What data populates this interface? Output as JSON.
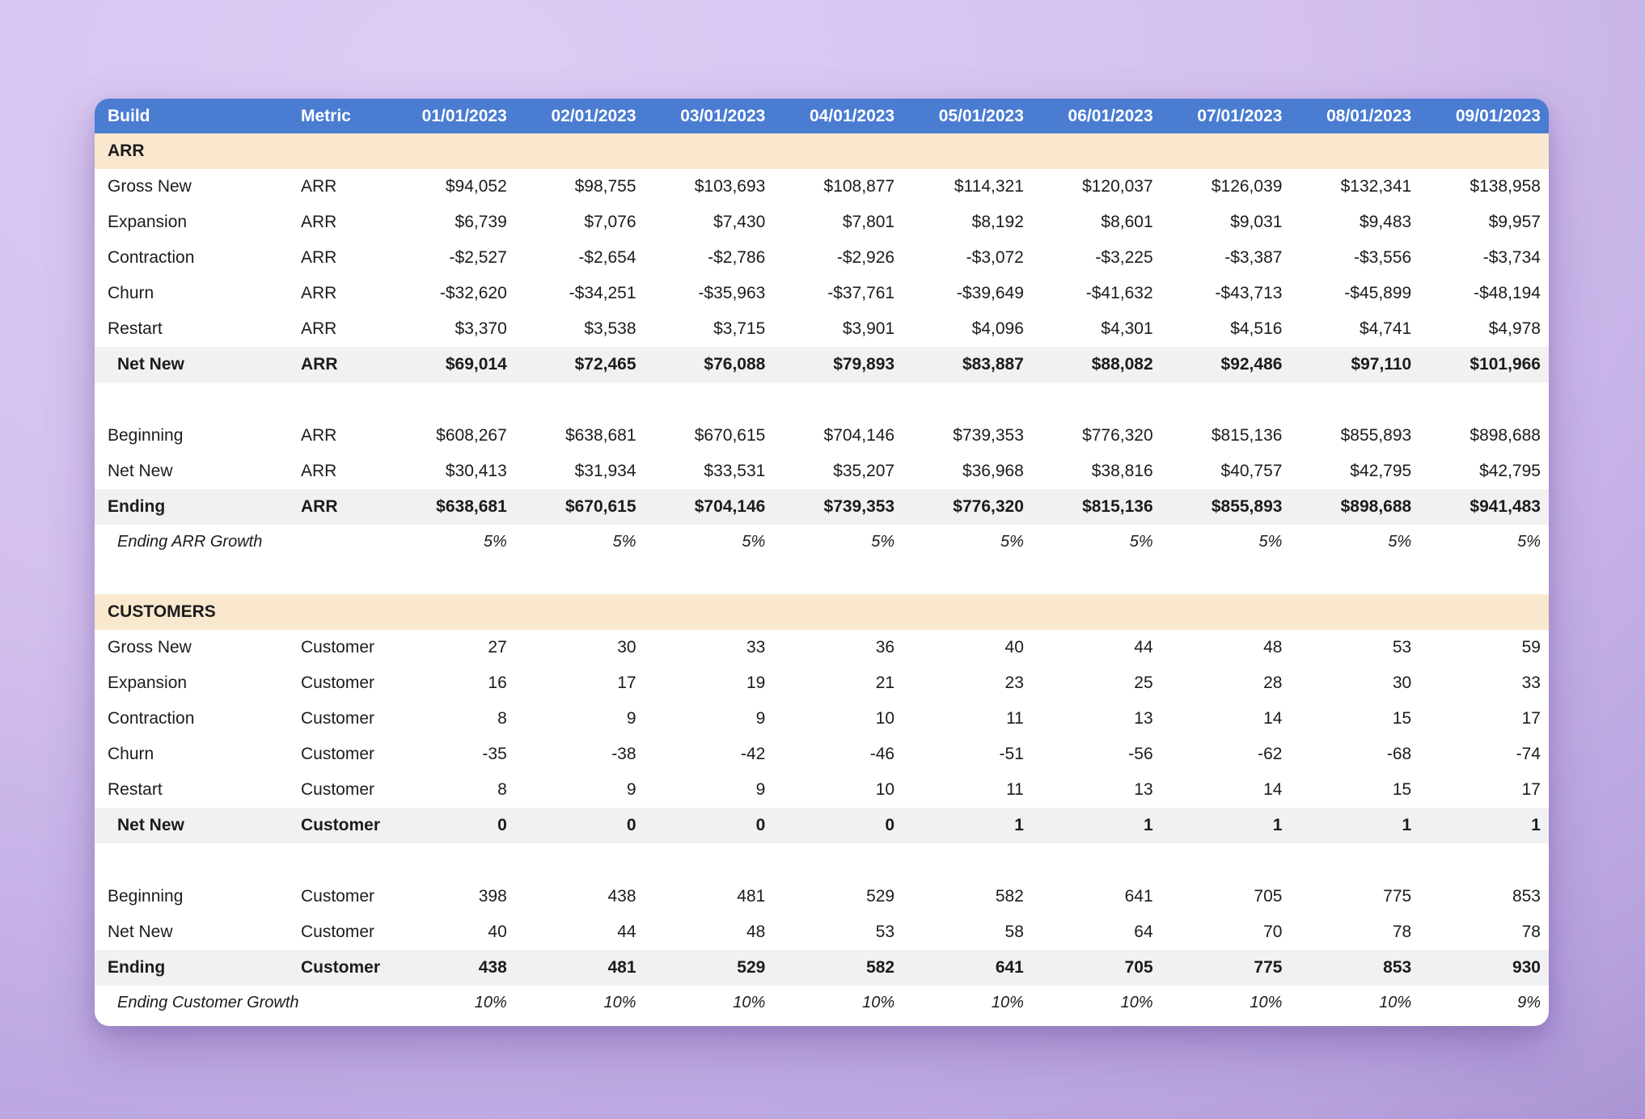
{
  "theme": {
    "accent": "#4a7cd2",
    "band": "#f9e8cd",
    "subtle": "#f1f1f3",
    "card": "#ffffff",
    "text": "#1c1c1e",
    "bg-light": "#dccdf4",
    "bg-mid": "#d3c0ee",
    "bg-dark": "#b7a2de"
  },
  "table": {
    "columns": [
      "Build",
      "Metric",
      "01/01/2023",
      "02/01/2023",
      "03/01/2023",
      "04/01/2023",
      "05/01/2023",
      "06/01/2023",
      "07/01/2023",
      "08/01/2023",
      "09/01/2023"
    ],
    "sections": [
      {
        "title": "ARR",
        "rows": [
          {
            "type": "data",
            "label": "Gross New",
            "metric": "ARR",
            "values": [
              "$94,052",
              "$98,755",
              "$103,693",
              "$108,877",
              "$114,321",
              "$120,037",
              "$126,039",
              "$132,341",
              "$138,958"
            ]
          },
          {
            "type": "data",
            "label": "Expansion",
            "metric": "ARR",
            "values": [
              "$6,739",
              "$7,076",
              "$7,430",
              "$7,801",
              "$8,192",
              "$8,601",
              "$9,031",
              "$9,483",
              "$9,957"
            ]
          },
          {
            "type": "data",
            "label": "Contraction",
            "metric": "ARR",
            "values": [
              "-$2,527",
              "-$2,654",
              "-$2,786",
              "-$2,926",
              "-$3,072",
              "-$3,225",
              "-$3,387",
              "-$3,556",
              "-$3,734"
            ]
          },
          {
            "type": "data",
            "label": "Churn",
            "metric": "ARR",
            "values": [
              "-$32,620",
              "-$34,251",
              "-$35,963",
              "-$37,761",
              "-$39,649",
              "-$41,632",
              "-$43,713",
              "-$45,899",
              "-$48,194"
            ]
          },
          {
            "type": "data",
            "label": "Restart",
            "metric": "ARR",
            "values": [
              "$3,370",
              "$3,538",
              "$3,715",
              "$3,901",
              "$4,096",
              "$4,301",
              "$4,516",
              "$4,741",
              "$4,978"
            ]
          },
          {
            "type": "subtotal",
            "indent": true,
            "label": "Net New",
            "metric": "ARR",
            "values": [
              "$69,014",
              "$72,465",
              "$76,088",
              "$79,893",
              "$83,887",
              "$88,082",
              "$92,486",
              "$97,110",
              "$101,966"
            ]
          },
          {
            "type": "spacer"
          },
          {
            "type": "data",
            "label": "Beginning",
            "metric": "ARR",
            "values": [
              "$608,267",
              "$638,681",
              "$670,615",
              "$704,146",
              "$739,353",
              "$776,320",
              "$815,136",
              "$855,893",
              "$898,688"
            ]
          },
          {
            "type": "data",
            "label": "Net New",
            "metric": "ARR",
            "values": [
              "$30,413",
              "$31,934",
              "$33,531",
              "$35,207",
              "$36,968",
              "$38,816",
              "$40,757",
              "$42,795",
              "$42,795"
            ]
          },
          {
            "type": "subtotal",
            "label": "Ending",
            "metric": "ARR",
            "values": [
              "$638,681",
              "$670,615",
              "$704,146",
              "$739,353",
              "$776,320",
              "$815,136",
              "$855,893",
              "$898,688",
              "$941,483"
            ]
          },
          {
            "type": "growth",
            "label": "Ending ARR Growth",
            "values": [
              "5%",
              "5%",
              "5%",
              "5%",
              "5%",
              "5%",
              "5%",
              "5%",
              "5%"
            ]
          },
          {
            "type": "spacer"
          }
        ]
      },
      {
        "title": "CUSTOMERS",
        "rows": [
          {
            "type": "data",
            "label": "Gross New",
            "metric": "Customer",
            "values": [
              "27",
              "30",
              "33",
              "36",
              "40",
              "44",
              "48",
              "53",
              "59"
            ]
          },
          {
            "type": "data",
            "label": "Expansion",
            "metric": "Customer",
            "values": [
              "16",
              "17",
              "19",
              "21",
              "23",
              "25",
              "28",
              "30",
              "33"
            ]
          },
          {
            "type": "data",
            "label": "Contraction",
            "metric": "Customer",
            "values": [
              "8",
              "9",
              "9",
              "10",
              "11",
              "13",
              "14",
              "15",
              "17"
            ]
          },
          {
            "type": "data",
            "label": "Churn",
            "metric": "Customer",
            "values": [
              "-35",
              "-38",
              "-42",
              "-46",
              "-51",
              "-56",
              "-62",
              "-68",
              "-74"
            ]
          },
          {
            "type": "data",
            "label": "Restart",
            "metric": "Customer",
            "values": [
              "8",
              "9",
              "9",
              "10",
              "11",
              "13",
              "14",
              "15",
              "17"
            ]
          },
          {
            "type": "subtotal",
            "indent": true,
            "label": "Net New",
            "metric": "Customer",
            "values": [
              "0",
              "0",
              "0",
              "0",
              "1",
              "1",
              "1",
              "1",
              "1"
            ]
          },
          {
            "type": "spacer"
          },
          {
            "type": "data",
            "label": "Beginning",
            "metric": "Customer",
            "values": [
              "398",
              "438",
              "481",
              "529",
              "582",
              "641",
              "705",
              "775",
              "853"
            ]
          },
          {
            "type": "data",
            "label": "Net New",
            "metric": "Customer",
            "values": [
              "40",
              "44",
              "48",
              "53",
              "58",
              "64",
              "70",
              "78",
              "78"
            ]
          },
          {
            "type": "subtotal",
            "label": "Ending",
            "metric": "Customer",
            "values": [
              "438",
              "481",
              "529",
              "582",
              "641",
              "705",
              "775",
              "853",
              "930"
            ]
          },
          {
            "type": "growth",
            "label": "Ending Customer Growth",
            "values": [
              "10%",
              "10%",
              "10%",
              "10%",
              "10%",
              "10%",
              "10%",
              "10%",
              "9%"
            ]
          }
        ]
      }
    ]
  }
}
